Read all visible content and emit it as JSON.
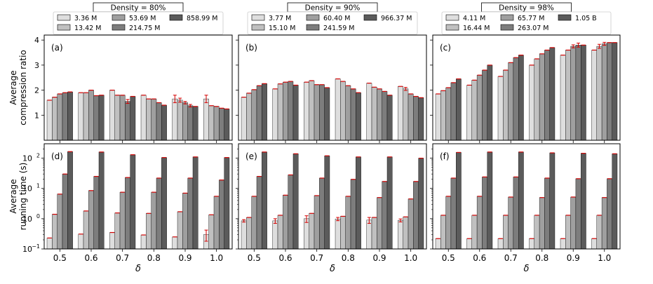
{
  "chart_data": {
    "type": "bar",
    "categories": [
      "0.5",
      "0.6",
      "0.7",
      "0.8",
      "0.9",
      "1.0"
    ],
    "xlabel": "δ",
    "row_ylabels": [
      [
        "Average",
        "compression ratio"
      ],
      [
        "Average",
        "running time (s)"
      ]
    ],
    "row_scales": [
      "linear",
      "log"
    ],
    "row_ylims": [
      [
        0,
        4.2
      ],
      [
        0.1,
        300
      ]
    ],
    "row_ticks": [
      [
        {
          "v": 1,
          "label": "1"
        },
        {
          "v": 2,
          "label": "2"
        },
        {
          "v": 3,
          "label": "3"
        },
        {
          "v": 4,
          "label": "4"
        }
      ],
      [
        {
          "v": 0.1,
          "label": "10",
          "exp": "−1"
        },
        {
          "v": 1,
          "label": "10",
          "exp": "0"
        },
        {
          "v": 10,
          "label": "10",
          "exp": "1"
        },
        {
          "v": 100,
          "label": "10",
          "exp": "2"
        }
      ]
    ],
    "series_colors": [
      "#dedede",
      "#c0c0c0",
      "#9f9f9f",
      "#7d7d7d",
      "#5b5b5b"
    ],
    "error_color": "#d40000",
    "columns": [
      {
        "legend_title": "Density = 80%",
        "series_names": [
          "3.36 M",
          "13.42 M",
          "53.69 M",
          "214.75 M",
          "858.99 M"
        ],
        "panels": [
          {
            "letter": "(a)",
            "values": [
              [
                1.6,
                1.9,
                2.0,
                1.8,
                1.65,
                1.65
              ],
              [
                1.72,
                1.9,
                1.8,
                1.65,
                1.6,
                1.38
              ],
              [
                1.85,
                2.0,
                1.8,
                1.65,
                1.5,
                1.35
              ],
              [
                1.9,
                1.78,
                1.55,
                1.5,
                1.38,
                1.28
              ],
              [
                1.93,
                1.8,
                1.75,
                1.4,
                1.35,
                1.25
              ]
            ],
            "errors": [
              [
                0,
                0,
                0,
                0,
                0.15,
                0.15
              ],
              [
                0,
                0,
                0,
                0,
                0.08,
                0
              ],
              [
                0,
                0,
                0,
                0,
                0.05,
                0
              ],
              [
                0,
                0,
                0.08,
                0,
                0.05,
                0
              ],
              [
                0,
                0,
                0,
                0,
                0,
                0
              ]
            ]
          },
          {
            "letter": "(d)",
            "values": [
              [
                0.23,
                0.31,
                0.35,
                0.29,
                0.25,
                0.3
              ],
              [
                1.4,
                1.8,
                1.55,
                1.5,
                1.7,
                1.35
              ],
              [
                6.5,
                8.5,
                7.5,
                7.5,
                7.0,
                5.5
              ],
              [
                30,
                25,
                23,
                22,
                22,
                19
              ],
              [
                165,
                160,
                130,
                105,
                110,
                105
              ]
            ],
            "errors": [
              [
                0,
                0,
                0,
                0,
                0,
                0.12
              ],
              [
                0,
                0,
                0,
                0,
                0,
                0
              ],
              [
                0,
                0,
                0,
                0,
                0,
                0
              ],
              [
                0,
                0,
                0,
                0,
                0,
                0
              ],
              [
                0,
                0,
                0,
                0,
                0,
                0
              ]
            ]
          }
        ]
      },
      {
        "legend_title": "Density = 90%",
        "series_names": [
          "3.77 M",
          "15.10 M",
          "60.40 M",
          "241.59 M",
          "966.37 M"
        ],
        "panels": [
          {
            "letter": "(b)",
            "values": [
              [
                1.72,
                2.05,
                2.32,
                2.45,
                2.28,
                2.15
              ],
              [
                1.88,
                2.25,
                2.38,
                2.35,
                2.12,
                2.05
              ],
              [
                2.02,
                2.32,
                2.22,
                2.18,
                2.05,
                1.85
              ],
              [
                2.18,
                2.35,
                2.22,
                2.05,
                1.95,
                1.75
              ],
              [
                2.26,
                2.2,
                2.1,
                1.9,
                1.8,
                1.7
              ]
            ],
            "errors": [
              [
                0,
                0,
                0,
                0,
                0,
                0
              ],
              [
                0,
                0,
                0,
                0,
                0,
                0.06
              ],
              [
                0,
                0,
                0,
                0,
                0,
                0
              ],
              [
                0,
                0,
                0,
                0,
                0,
                0
              ],
              [
                0,
                0,
                0,
                0,
                0,
                0
              ]
            ]
          },
          {
            "letter": "(e)",
            "values": [
              [
                0.85,
                0.85,
                1.0,
                0.98,
                0.9,
                0.88
              ],
              [
                1.1,
                1.3,
                1.5,
                1.2,
                1.1,
                1.15
              ],
              [
                5.5,
                6.0,
                5.8,
                5.5,
                5.0,
                4.5
              ],
              [
                25,
                28,
                22,
                20,
                17,
                17
              ],
              [
                160,
                140,
                120,
                110,
                110,
                100
              ]
            ],
            "errors": [
              [
                0.08,
                0.15,
                0.25,
                0.12,
                0.2,
                0.1
              ],
              [
                0,
                0,
                0,
                0,
                0,
                0
              ],
              [
                0,
                0,
                0,
                0,
                0,
                0
              ],
              [
                0,
                0,
                0,
                0,
                0,
                0
              ],
              [
                0,
                0,
                0,
                0,
                0,
                0
              ]
            ]
          }
        ]
      },
      {
        "legend_title": "Density = 98%",
        "series_names": [
          "4.11 M",
          "16.44 M",
          "65.77 M",
          "263.07 M",
          "1.05 B"
        ],
        "panels": [
          {
            "letter": "(c)",
            "values": [
              [
                1.85,
                2.2,
                2.55,
                3.0,
                3.4,
                3.6
              ],
              [
                1.98,
                2.4,
                2.8,
                3.25,
                3.6,
                3.75
              ],
              [
                2.1,
                2.6,
                3.1,
                3.45,
                3.75,
                3.85
              ],
              [
                2.3,
                2.8,
                3.3,
                3.6,
                3.8,
                3.9
              ],
              [
                2.45,
                3.0,
                3.4,
                3.7,
                3.8,
                3.9
              ]
            ],
            "errors": [
              [
                0,
                0,
                0,
                0,
                0,
                0
              ],
              [
                0,
                0,
                0,
                0,
                0,
                0.08
              ],
              [
                0,
                0,
                0,
                0,
                0.06,
                0.06
              ],
              [
                0,
                0,
                0,
                0,
                0.08,
                0
              ],
              [
                0,
                0,
                0,
                0,
                0,
                0
              ]
            ]
          },
          {
            "letter": "(f)",
            "values": [
              [
                0.22,
                0.22,
                0.22,
                0.22,
                0.22,
                0.22
              ],
              [
                1.3,
                1.3,
                1.3,
                1.3,
                1.3,
                1.3
              ],
              [
                5.5,
                5.5,
                5.2,
                5.0,
                5.2,
                5.0
              ],
              [
                22,
                24,
                24,
                22,
                21,
                21
              ],
              [
                155,
                160,
                160,
                150,
                145,
                140
              ]
            ],
            "errors": [
              [
                0,
                0,
                0,
                0,
                0,
                0
              ],
              [
                0,
                0,
                0,
                0,
                0,
                0
              ],
              [
                0,
                0,
                0,
                0,
                0,
                0
              ],
              [
                0,
                0,
                0,
                0,
                0,
                0
              ],
              [
                0,
                0,
                0,
                0,
                0,
                0
              ]
            ]
          }
        ]
      }
    ]
  }
}
